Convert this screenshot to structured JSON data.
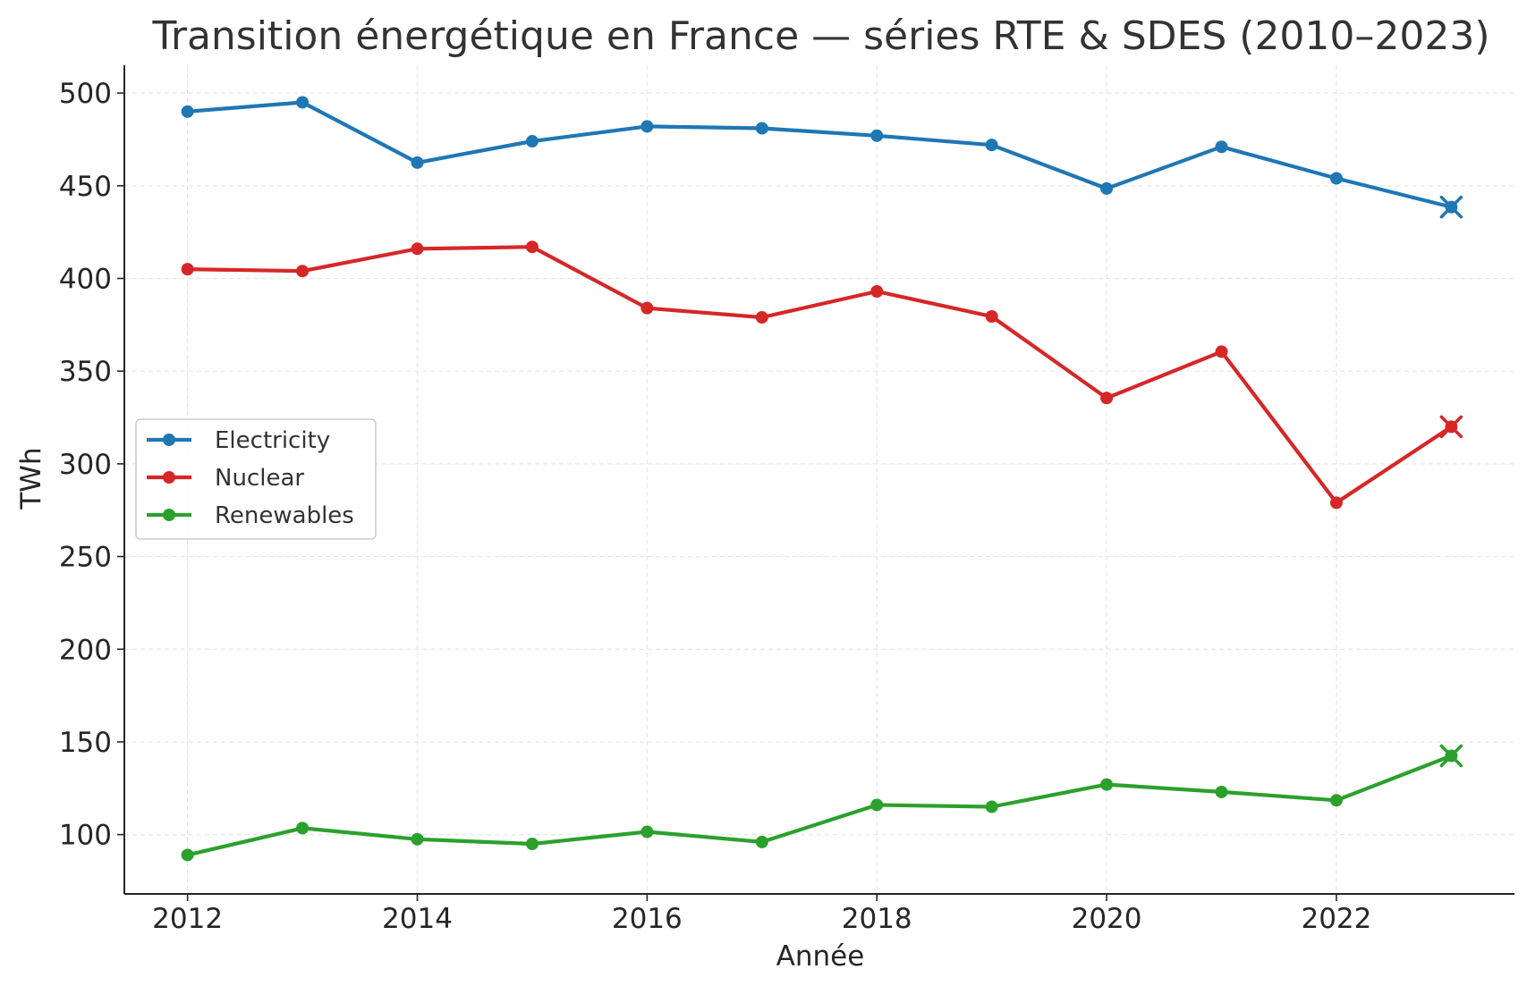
{
  "chart_data": {
    "type": "line",
    "title": "Transition énergétique en France — séries RTE & SDES (2010–2023)",
    "xlabel": "Année",
    "ylabel": "TWh",
    "x": [
      2012,
      2013,
      2014,
      2015,
      2016,
      2017,
      2018,
      2019,
      2020,
      2021,
      2022,
      2023
    ],
    "xticks": [
      2012,
      2014,
      2016,
      2018,
      2020,
      2022
    ],
    "yticks": [
      100,
      150,
      200,
      250,
      300,
      350,
      400,
      450,
      500
    ],
    "xlim": [
      2011.45,
      2023.55
    ],
    "ylim": [
      68,
      515
    ],
    "grid": true,
    "legend_position": "center-left",
    "last_point_marker": "x",
    "series": [
      {
        "name": "Electricity",
        "color": "#1f77b4",
        "values": [
          490,
          495,
          462.5,
          474,
          482,
          481,
          477,
          472,
          448.5,
          471,
          454,
          438.5
        ]
      },
      {
        "name": "Nuclear",
        "color": "#d62728",
        "values": [
          405,
          404,
          416,
          417,
          384,
          379,
          393,
          379.5,
          335.5,
          360.5,
          279,
          320
        ]
      },
      {
        "name": "Renewables",
        "color": "#2ca02c",
        "values": [
          89,
          103.5,
          97.5,
          95,
          101.5,
          96,
          116,
          115,
          127,
          123,
          118.5,
          142.5
        ]
      }
    ]
  }
}
